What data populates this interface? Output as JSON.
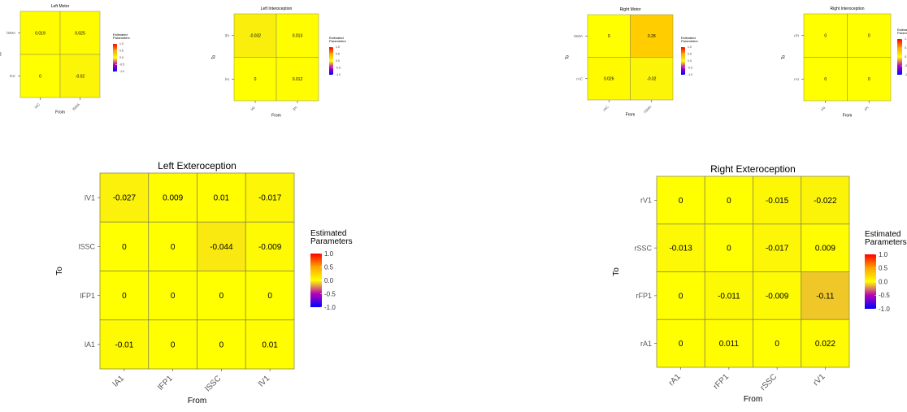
{
  "colorbar": {
    "title": [
      "Estimated",
      "Parameters"
    ],
    "ticks": [
      "1.0",
      "0.5",
      "0.0",
      "-0.5",
      "-1.0"
    ],
    "low": "#0000ff",
    "mid": "#ffff00",
    "high": "#ff0000"
  },
  "chart_data": [
    {
      "type": "heatmap",
      "title": "Left Motor",
      "xlabel": "From",
      "ylabel": "To",
      "x_categories": [
        "lAC",
        "lSMA"
      ],
      "y_categories": [
        "lSMA",
        "lAC"
      ],
      "values": [
        [
          0.019,
          0.025
        ],
        [
          0,
          -0.02
        ]
      ],
      "value_labels": [
        [
          "0.019",
          "0.025"
        ],
        [
          "0",
          "-0.02"
        ]
      ],
      "color_range": [
        -1,
        1
      ]
    },
    {
      "type": "heatmap",
      "title": "Left Interoception",
      "xlabel": "From",
      "ylabel": "To",
      "x_categories": [
        "lAI",
        "lPI"
      ],
      "y_categories": [
        "lPI",
        "lAI"
      ],
      "values": [
        [
          -0.032,
          0.013
        ],
        [
          0,
          0.012
        ]
      ],
      "value_labels": [
        [
          "-0.032",
          "0.013"
        ],
        [
          "0",
          "0.012"
        ]
      ],
      "color_range": [
        -1,
        1
      ]
    },
    {
      "type": "heatmap",
      "title": "Right Motor",
      "xlabel": "From",
      "ylabel": "To",
      "x_categories": [
        "rAC",
        "rSMA"
      ],
      "y_categories": [
        "rSMA",
        "rAC"
      ],
      "values": [
        [
          0,
          0.28
        ],
        [
          0.026,
          -0.02
        ]
      ],
      "value_labels": [
        [
          "0",
          "0.28"
        ],
        [
          "0.026",
          "-0.02"
        ]
      ],
      "color_range": [
        -1,
        1
      ]
    },
    {
      "type": "heatmap",
      "title": "Right Interoception",
      "xlabel": "From",
      "ylabel": "To",
      "x_categories": [
        "rAI",
        "rPI"
      ],
      "y_categories": [
        "rPI",
        "rAI"
      ],
      "values": [
        [
          0,
          0
        ],
        [
          0,
          0
        ]
      ],
      "value_labels": [
        [
          "0",
          "0"
        ],
        [
          "0",
          "0"
        ]
      ],
      "color_range": [
        -1,
        1
      ]
    },
    {
      "type": "heatmap",
      "title": "Left Exteroception",
      "xlabel": "From",
      "ylabel": "To",
      "x_categories": [
        "lA1",
        "lFP1",
        "lSSC",
        "lV1"
      ],
      "y_categories": [
        "lV1",
        "lSSC",
        "lFP1",
        "lA1"
      ],
      "values": [
        [
          -0.027,
          0.009,
          0.01,
          -0.017
        ],
        [
          0,
          0,
          -0.044,
          -0.009
        ],
        [
          0,
          0,
          0,
          0
        ],
        [
          -0.01,
          0,
          0,
          0.01
        ]
      ],
      "value_labels": [
        [
          "-0.027",
          "0.009",
          "0.01",
          "-0.017"
        ],
        [
          "0",
          "0",
          "-0.044",
          "-0.009"
        ],
        [
          "0",
          "0",
          "0",
          "0"
        ],
        [
          "-0.01",
          "0",
          "0",
          "0.01"
        ]
      ],
      "color_range": [
        -1,
        1
      ]
    },
    {
      "type": "heatmap",
      "title": "Right Exteroception",
      "xlabel": "From",
      "ylabel": "To",
      "x_categories": [
        "rA1",
        "rFP1",
        "rSSC",
        "rV1"
      ],
      "y_categories": [
        "rV1",
        "rSSC",
        "rFP1",
        "rA1"
      ],
      "values": [
        [
          0,
          0,
          -0.015,
          -0.022
        ],
        [
          -0.013,
          0,
          -0.017,
          0.009
        ],
        [
          0,
          -0.011,
          -0.009,
          -0.11
        ],
        [
          0,
          0.011,
          0,
          0.022
        ]
      ],
      "value_labels": [
        [
          "0",
          "0",
          "-0.015",
          "-0.022"
        ],
        [
          "-0.013",
          "0",
          "-0.017",
          "0.009"
        ],
        [
          "0",
          "-0.011",
          "-0.009",
          "-0.11"
        ],
        [
          "0",
          "0.011",
          "0",
          "0.022"
        ]
      ],
      "color_range": [
        -1,
        1
      ]
    }
  ]
}
